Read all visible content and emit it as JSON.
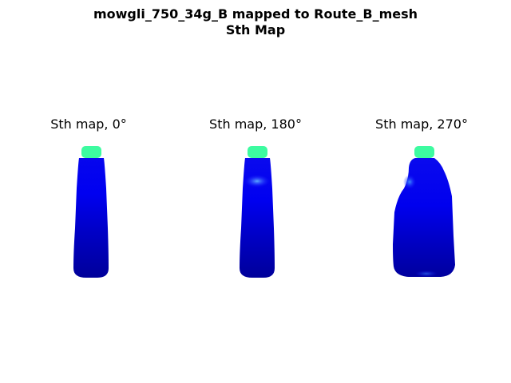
{
  "figure": {
    "title_line1": "mowgli_750_34g_B mapped to Route_B_mesh",
    "title_line2": "Sth Map"
  },
  "panels": [
    {
      "label": "Sth map, 0°",
      "angle": "0°"
    },
    {
      "label": "Sth map, 180°",
      "angle": "180°"
    },
    {
      "label": "Sth map, 270°",
      "angle": "270°"
    }
  ],
  "colors": {
    "cap": "#3dfba0",
    "body_main": "#0a0ae6",
    "body_dark": "#00009a",
    "highlight": "#3a8cff"
  }
}
